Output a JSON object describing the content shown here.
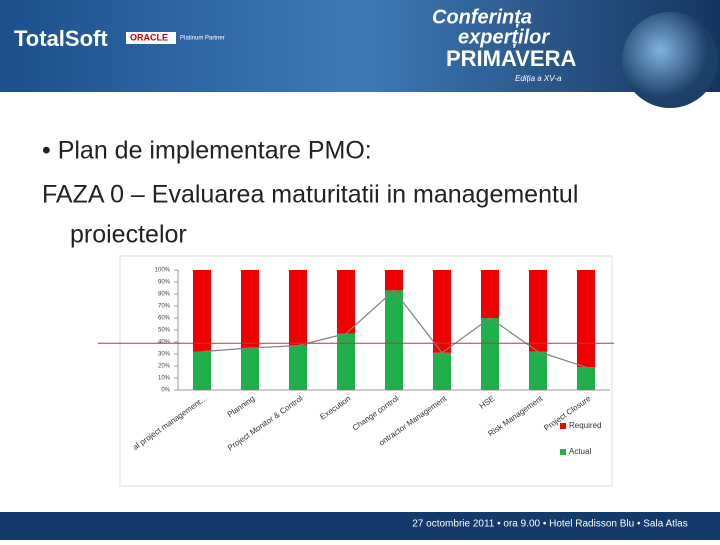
{
  "header": {
    "brand": "TotalSoft",
    "partner": "ORACLE",
    "partner_level": "Platinum Partner",
    "event_line1": "Conferința",
    "event_line2": "experților",
    "event_name": "PRIMAVERA",
    "edition": "Ediția a XV-a"
  },
  "body": {
    "bullet": "• Plan de implementare PMO:",
    "line1": "FAZA 0 – Evaluarea maturitatii in managementul",
    "line2": "proiectelor"
  },
  "footer": "27 octombrie 2011  •  ora 9.00  •  Hotel Radisson Blu  •  Sala Atlas",
  "chart_data": {
    "type": "stacked_bar",
    "categories": [
      "al project management...",
      "Planning",
      "Project Monitor & Control",
      "Execution",
      "Change control",
      "ontractor Management",
      "HSE",
      "Risk Management",
      "Project Closure"
    ],
    "series": [
      {
        "name": "Actual",
        "color": "#1fb04b",
        "values": [
          32,
          35,
          37,
          47,
          83,
          31,
          60,
          32,
          19
        ]
      },
      {
        "name": "Required",
        "color": "#f00000",
        "values": [
          68,
          65,
          63,
          53,
          17,
          69,
          40,
          68,
          81
        ]
      }
    ],
    "line_color": "#808080",
    "threshold": 39,
    "threshold_color": "#c0392b",
    "ylim": [
      0,
      100
    ],
    "yticks": [
      {
        "value": 0,
        "label": "0%"
      },
      {
        "value": 10,
        "label": "10%"
      },
      {
        "value": 20,
        "label": "20%"
      },
      {
        "value": 30,
        "label": "30%"
      },
      {
        "value": 40,
        "label": "40%"
      },
      {
        "value": 50,
        "label": "50%"
      },
      {
        "value": 60,
        "label": "60%"
      },
      {
        "value": 70,
        "label": "70%"
      },
      {
        "value": 80,
        "label": "80%"
      },
      {
        "value": 90,
        "label": "90%"
      },
      {
        "value": 100,
        "label": "100%"
      }
    ],
    "legend": "right"
  }
}
